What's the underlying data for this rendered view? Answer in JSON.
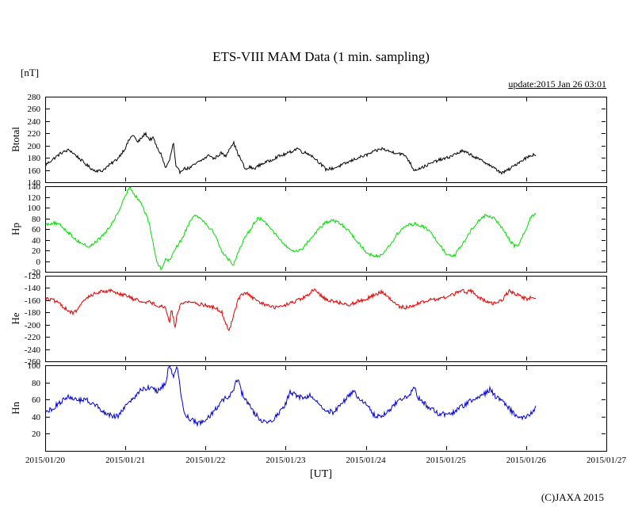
{
  "title": "ETS-VIII MAM Data (1 min. sampling)",
  "y_unit_label": "[nT]",
  "x_axis_label": "[UT]",
  "update_text": "update:2015 Jan 26 03:01",
  "copyright": "(C)JAXA 2015",
  "chart_data": {
    "type": "line",
    "title": "ETS-VIII MAM Data (1 min. sampling)",
    "xlabel": "[UT]",
    "ylabel_unit": "[nT]",
    "x_range_days": [
      0,
      7
    ],
    "x_tick_labels": [
      "2015/01/20",
      "2015/01/21",
      "2015/01/22",
      "2015/01/23",
      "2015/01/24",
      "2015/01/25",
      "2015/01/26",
      "2015/01/27"
    ],
    "data_end_x": 6.12,
    "grid": false,
    "legend": "none",
    "panels": [
      {
        "name": "Btotal",
        "color": "#000000",
        "ylim": [
          140,
          280
        ],
        "yticks": [
          140,
          160,
          180,
          200,
          220,
          240,
          260,
          280
        ],
        "noise": 2.5,
        "points": [
          [
            0,
            168
          ],
          [
            0.1,
            178
          ],
          [
            0.2,
            188
          ],
          [
            0.3,
            193
          ],
          [
            0.4,
            182
          ],
          [
            0.5,
            170
          ],
          [
            0.6,
            160
          ],
          [
            0.7,
            158
          ],
          [
            0.8,
            168
          ],
          [
            0.9,
            178
          ],
          [
            1.0,
            196
          ],
          [
            1.05,
            210
          ],
          [
            1.1,
            218
          ],
          [
            1.15,
            205
          ],
          [
            1.2,
            212
          ],
          [
            1.25,
            220
          ],
          [
            1.3,
            210
          ],
          [
            1.35,
            212
          ],
          [
            1.4,
            195
          ],
          [
            1.45,
            185
          ],
          [
            1.5,
            163
          ],
          [
            1.55,
            175
          ],
          [
            1.6,
            205
          ],
          [
            1.63,
            165
          ],
          [
            1.68,
            157
          ],
          [
            1.72,
            162
          ],
          [
            1.8,
            163
          ],
          [
            1.9,
            172
          ],
          [
            2.0,
            180
          ],
          [
            2.05,
            185
          ],
          [
            2.1,
            178
          ],
          [
            2.2,
            188
          ],
          [
            2.25,
            182
          ],
          [
            2.3,
            196
          ],
          [
            2.35,
            205
          ],
          [
            2.4,
            188
          ],
          [
            2.45,
            175
          ],
          [
            2.5,
            160
          ],
          [
            2.55,
            165
          ],
          [
            2.6,
            162
          ],
          [
            2.7,
            170
          ],
          [
            2.8,
            175
          ],
          [
            2.9,
            182
          ],
          [
            3.0,
            186
          ],
          [
            3.1,
            192
          ],
          [
            3.15,
            196
          ],
          [
            3.2,
            190
          ],
          [
            3.3,
            186
          ],
          [
            3.4,
            175
          ],
          [
            3.5,
            161
          ],
          [
            3.6,
            163
          ],
          [
            3.7,
            168
          ],
          [
            3.8,
            174
          ],
          [
            3.9,
            180
          ],
          [
            4.0,
            184
          ],
          [
            4.1,
            190
          ],
          [
            4.2,
            195
          ],
          [
            4.3,
            190
          ],
          [
            4.4,
            188
          ],
          [
            4.5,
            183
          ],
          [
            4.55,
            172
          ],
          [
            4.6,
            160
          ],
          [
            4.7,
            164
          ],
          [
            4.8,
            170
          ],
          [
            4.9,
            176
          ],
          [
            5.0,
            179
          ],
          [
            5.1,
            185
          ],
          [
            5.2,
            191
          ],
          [
            5.3,
            186
          ],
          [
            5.4,
            178
          ],
          [
            5.5,
            172
          ],
          [
            5.6,
            163
          ],
          [
            5.7,
            155
          ],
          [
            5.8,
            162
          ],
          [
            5.9,
            172
          ],
          [
            6.0,
            180
          ],
          [
            6.1,
            186
          ],
          [
            6.12,
            184
          ]
        ]
      },
      {
        "name": "Hp",
        "color": "#00dd00",
        "ylim": [
          -20,
          140
        ],
        "yticks": [
          -20,
          0,
          20,
          40,
          60,
          80,
          100,
          120,
          140
        ],
        "noise": 3,
        "points": [
          [
            0,
            68
          ],
          [
            0.1,
            72
          ],
          [
            0.2,
            66
          ],
          [
            0.3,
            52
          ],
          [
            0.4,
            38
          ],
          [
            0.5,
            30
          ],
          [
            0.55,
            26
          ],
          [
            0.6,
            32
          ],
          [
            0.7,
            45
          ],
          [
            0.8,
            62
          ],
          [
            0.9,
            88
          ],
          [
            1.0,
            120
          ],
          [
            1.05,
            140
          ],
          [
            1.1,
            128
          ],
          [
            1.15,
            118
          ],
          [
            1.2,
            108
          ],
          [
            1.3,
            70
          ],
          [
            1.35,
            30
          ],
          [
            1.4,
            -5
          ],
          [
            1.45,
            -15
          ],
          [
            1.5,
            5
          ],
          [
            1.55,
            0
          ],
          [
            1.6,
            18
          ],
          [
            1.7,
            40
          ],
          [
            1.8,
            72
          ],
          [
            1.85,
            86
          ],
          [
            1.9,
            84
          ],
          [
            1.95,
            80
          ],
          [
            2.0,
            70
          ],
          [
            2.1,
            55
          ],
          [
            2.2,
            20
          ],
          [
            2.25,
            8
          ],
          [
            2.3,
            2
          ],
          [
            2.35,
            -8
          ],
          [
            2.4,
            15
          ],
          [
            2.5,
            45
          ],
          [
            2.6,
            70
          ],
          [
            2.65,
            80
          ],
          [
            2.7,
            78
          ],
          [
            2.8,
            65
          ],
          [
            2.9,
            45
          ],
          [
            3.0,
            28
          ],
          [
            3.1,
            18
          ],
          [
            3.2,
            22
          ],
          [
            3.3,
            40
          ],
          [
            3.4,
            58
          ],
          [
            3.5,
            72
          ],
          [
            3.6,
            76
          ],
          [
            3.7,
            68
          ],
          [
            3.8,
            55
          ],
          [
            3.9,
            35
          ],
          [
            4.0,
            18
          ],
          [
            4.1,
            8
          ],
          [
            4.2,
            12
          ],
          [
            4.3,
            30
          ],
          [
            4.4,
            52
          ],
          [
            4.5,
            66
          ],
          [
            4.6,
            70
          ],
          [
            4.7,
            66
          ],
          [
            4.8,
            55
          ],
          [
            4.9,
            35
          ],
          [
            5.0,
            14
          ],
          [
            5.1,
            10
          ],
          [
            5.2,
            30
          ],
          [
            5.3,
            55
          ],
          [
            5.4,
            75
          ],
          [
            5.5,
            86
          ],
          [
            5.6,
            80
          ],
          [
            5.7,
            62
          ],
          [
            5.8,
            38
          ],
          [
            5.85,
            28
          ],
          [
            5.9,
            30
          ],
          [
            6.0,
            60
          ],
          [
            6.05,
            80
          ],
          [
            6.1,
            88
          ],
          [
            6.12,
            86
          ]
        ]
      },
      {
        "name": "He",
        "color": "#dd0000",
        "ylim": [
          -260,
          -120
        ],
        "yticks": [
          -260,
          -240,
          -220,
          -200,
          -180,
          -160,
          -140,
          -120
        ],
        "noise": 3,
        "points": [
          [
            0,
            -157
          ],
          [
            0.1,
            -160
          ],
          [
            0.2,
            -168
          ],
          [
            0.3,
            -178
          ],
          [
            0.35,
            -182
          ],
          [
            0.45,
            -168
          ],
          [
            0.5,
            -158
          ],
          [
            0.6,
            -150
          ],
          [
            0.7,
            -146
          ],
          [
            0.8,
            -144
          ],
          [
            0.9,
            -148
          ],
          [
            1.0,
            -152
          ],
          [
            1.1,
            -158
          ],
          [
            1.2,
            -162
          ],
          [
            1.3,
            -163
          ],
          [
            1.4,
            -168
          ],
          [
            1.5,
            -172
          ],
          [
            1.55,
            -195
          ],
          [
            1.58,
            -175
          ],
          [
            1.62,
            -205
          ],
          [
            1.65,
            -180
          ],
          [
            1.7,
            -165
          ],
          [
            1.8,
            -162
          ],
          [
            1.9,
            -166
          ],
          [
            2.0,
            -168
          ],
          [
            2.1,
            -172
          ],
          [
            2.2,
            -178
          ],
          [
            2.25,
            -200
          ],
          [
            2.3,
            -208
          ],
          [
            2.35,
            -185
          ],
          [
            2.4,
            -162
          ],
          [
            2.45,
            -150
          ],
          [
            2.5,
            -148
          ],
          [
            2.55,
            -152
          ],
          [
            2.6,
            -158
          ],
          [
            2.7,
            -165
          ],
          [
            2.8,
            -170
          ],
          [
            2.9,
            -172
          ],
          [
            3.0,
            -168
          ],
          [
            3.1,
            -163
          ],
          [
            3.2,
            -158
          ],
          [
            3.3,
            -150
          ],
          [
            3.35,
            -143
          ],
          [
            3.4,
            -148
          ],
          [
            3.5,
            -158
          ],
          [
            3.6,
            -162
          ],
          [
            3.7,
            -165
          ],
          [
            3.8,
            -167
          ],
          [
            3.9,
            -162
          ],
          [
            4.0,
            -158
          ],
          [
            4.1,
            -152
          ],
          [
            4.2,
            -146
          ],
          [
            4.3,
            -158
          ],
          [
            4.4,
            -170
          ],
          [
            4.5,
            -172
          ],
          [
            4.6,
            -168
          ],
          [
            4.7,
            -163
          ],
          [
            4.8,
            -160
          ],
          [
            4.9,
            -158
          ],
          [
            5.0,
            -155
          ],
          [
            5.1,
            -150
          ],
          [
            5.2,
            -144
          ],
          [
            5.25,
            -148
          ],
          [
            5.3,
            -143
          ],
          [
            5.4,
            -155
          ],
          [
            5.5,
            -162
          ],
          [
            5.6,
            -165
          ],
          [
            5.7,
            -160
          ],
          [
            5.75,
            -150
          ],
          [
            5.8,
            -145
          ],
          [
            5.9,
            -152
          ],
          [
            6.0,
            -158
          ],
          [
            6.1,
            -155
          ],
          [
            6.12,
            -156
          ]
        ]
      },
      {
        "name": "Hn",
        "color": "#0000cc",
        "ylim": [
          0,
          100
        ],
        "yticks": [
          20,
          40,
          60,
          80,
          100
        ],
        "noise": 3,
        "points": [
          [
            0,
            44
          ],
          [
            0.1,
            50
          ],
          [
            0.2,
            58
          ],
          [
            0.3,
            64
          ],
          [
            0.4,
            58
          ],
          [
            0.5,
            60
          ],
          [
            0.6,
            55
          ],
          [
            0.7,
            48
          ],
          [
            0.8,
            42
          ],
          [
            0.9,
            40
          ],
          [
            1.0,
            52
          ],
          [
            1.1,
            60
          ],
          [
            1.15,
            68
          ],
          [
            1.2,
            72
          ],
          [
            1.3,
            74
          ],
          [
            1.4,
            70
          ],
          [
            1.5,
            78
          ],
          [
            1.55,
            102
          ],
          [
            1.6,
            85
          ],
          [
            1.65,
            98
          ],
          [
            1.7,
            60
          ],
          [
            1.75,
            42
          ],
          [
            1.8,
            38
          ],
          [
            1.9,
            32
          ],
          [
            2.0,
            35
          ],
          [
            2.1,
            45
          ],
          [
            2.2,
            58
          ],
          [
            2.3,
            65
          ],
          [
            2.35,
            72
          ],
          [
            2.4,
            85
          ],
          [
            2.45,
            68
          ],
          [
            2.5,
            60
          ],
          [
            2.6,
            45
          ],
          [
            2.7,
            36
          ],
          [
            2.8,
            34
          ],
          [
            2.9,
            42
          ],
          [
            3.0,
            55
          ],
          [
            3.05,
            68
          ],
          [
            3.1,
            66
          ],
          [
            3.2,
            62
          ],
          [
            3.3,
            65
          ],
          [
            3.4,
            58
          ],
          [
            3.5,
            48
          ],
          [
            3.6,
            45
          ],
          [
            3.7,
            55
          ],
          [
            3.8,
            66
          ],
          [
            3.85,
            70
          ],
          [
            3.9,
            62
          ],
          [
            4.0,
            55
          ],
          [
            4.1,
            42
          ],
          [
            4.2,
            40
          ],
          [
            4.3,
            48
          ],
          [
            4.4,
            58
          ],
          [
            4.5,
            62
          ],
          [
            4.55,
            66
          ],
          [
            4.6,
            78
          ],
          [
            4.65,
            62
          ],
          [
            4.7,
            58
          ],
          [
            4.8,
            50
          ],
          [
            4.9,
            44
          ],
          [
            5.0,
            42
          ],
          [
            5.1,
            45
          ],
          [
            5.2,
            52
          ],
          [
            5.3,
            58
          ],
          [
            5.4,
            62
          ],
          [
            5.5,
            68
          ],
          [
            5.55,
            72
          ],
          [
            5.6,
            65
          ],
          [
            5.7,
            58
          ],
          [
            5.8,
            48
          ],
          [
            5.9,
            38
          ],
          [
            6.0,
            40
          ],
          [
            6.1,
            48
          ],
          [
            6.12,
            50
          ]
        ]
      }
    ]
  }
}
